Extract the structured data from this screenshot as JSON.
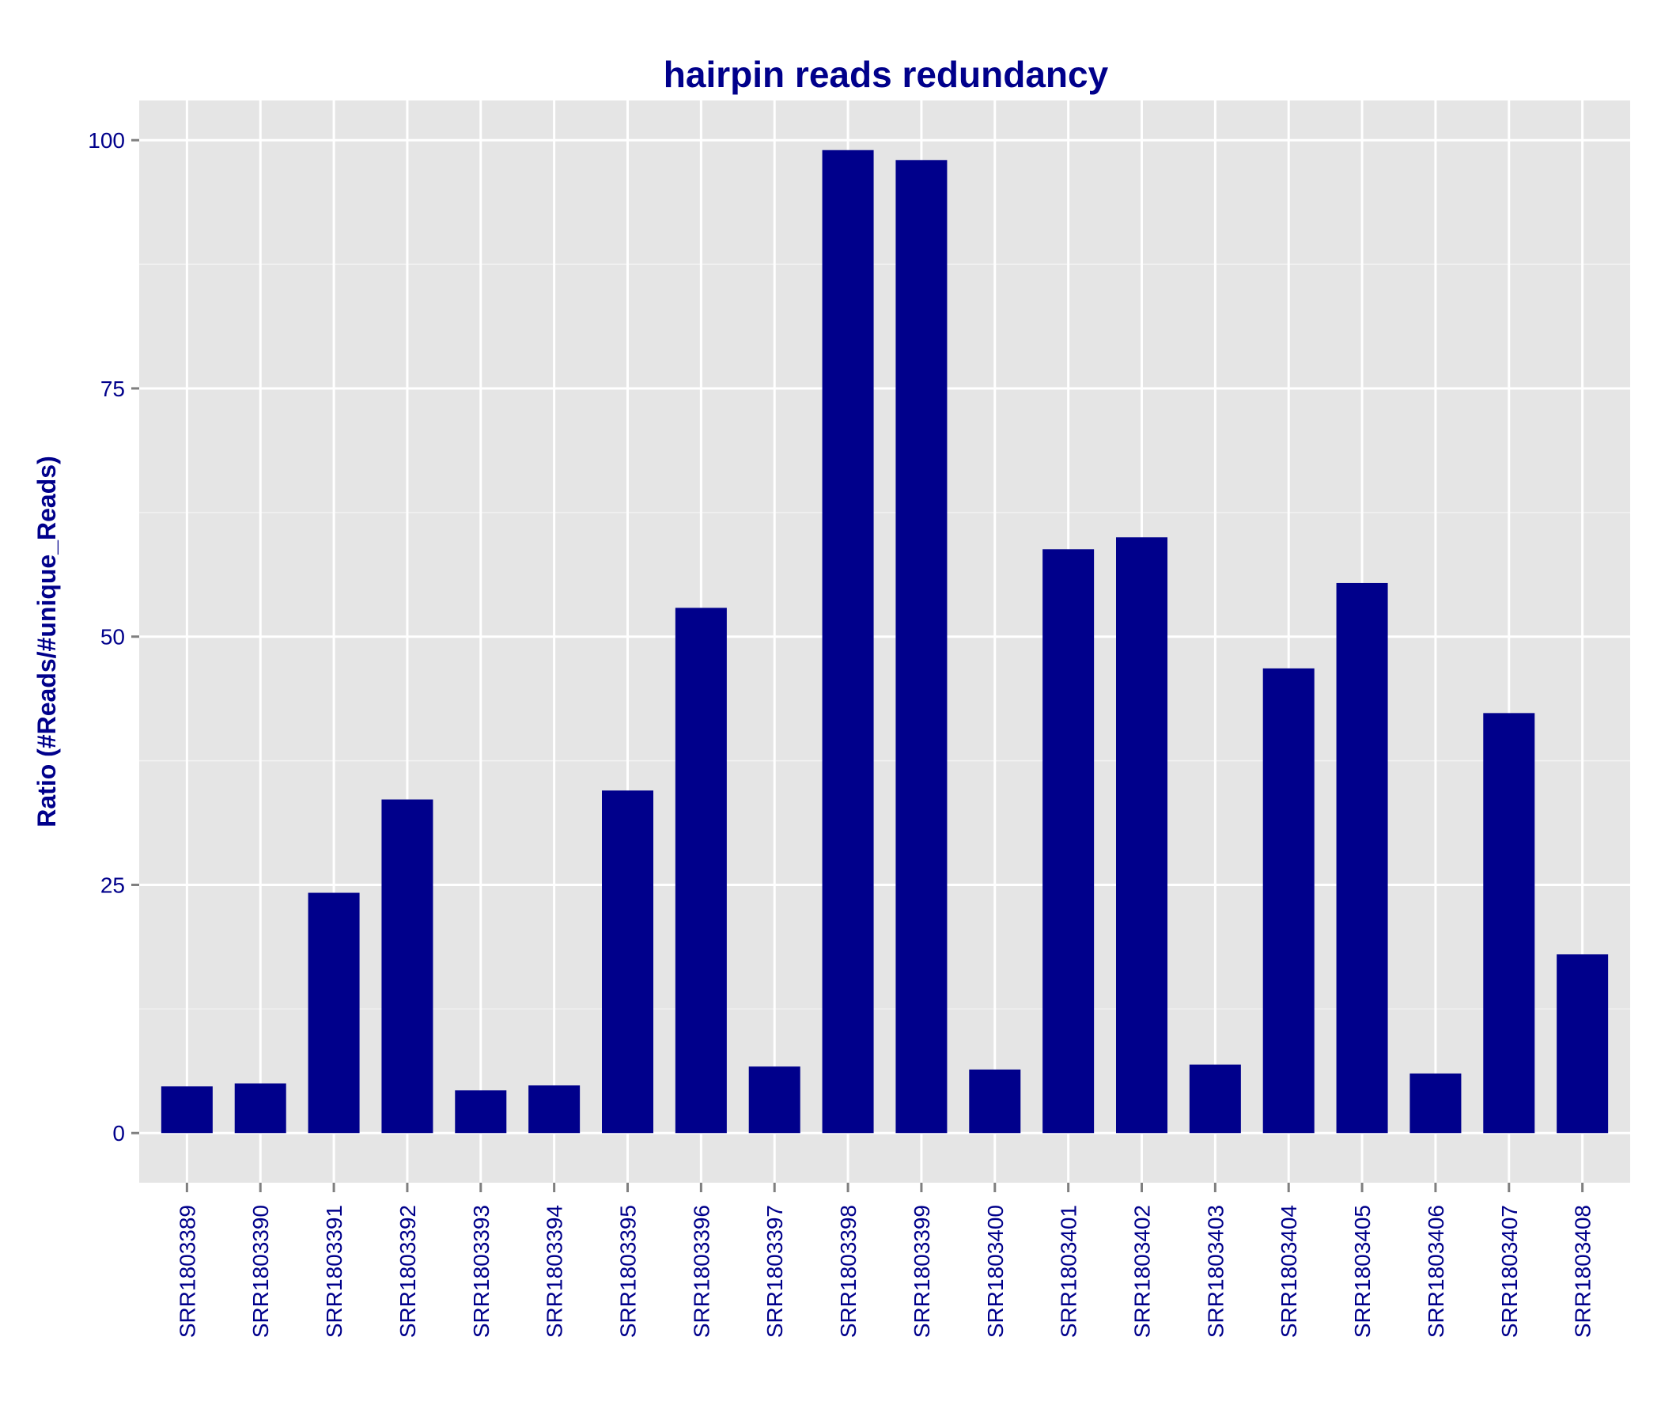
{
  "chart_data": {
    "type": "bar",
    "title": "hairpin reads redundancy",
    "xlabel": "",
    "ylabel": "Ratio (#Reads/#unique_Reads)",
    "ylim": [
      -5,
      104
    ],
    "yticks": [
      0,
      25,
      50,
      75,
      100
    ],
    "grid": true,
    "categories": [
      "SRR1803389",
      "SRR1803390",
      "SRR1803391",
      "SRR1803392",
      "SRR1803393",
      "SRR1803394",
      "SRR1803395",
      "SRR1803396",
      "SRR1803397",
      "SRR1803398",
      "SRR1803399",
      "SRR1803400",
      "SRR1803401",
      "SRR1803402",
      "SRR1803403",
      "SRR1803404",
      "SRR1803405",
      "SRR1803406",
      "SRR1803407",
      "SRR1803408"
    ],
    "values": [
      4.7,
      5.0,
      24.2,
      33.6,
      4.3,
      4.8,
      34.5,
      52.9,
      6.7,
      99.0,
      98.0,
      6.4,
      58.8,
      60.0,
      6.9,
      46.8,
      55.4,
      6.0,
      42.3,
      18.0
    ]
  },
  "colors": {
    "bar": "#00008b",
    "text": "#00008b",
    "panel": "#e5e5e5",
    "grid_major": "#ffffff",
    "grid_minor": "#f2f2f2",
    "tick": "#7f7f7f"
  }
}
